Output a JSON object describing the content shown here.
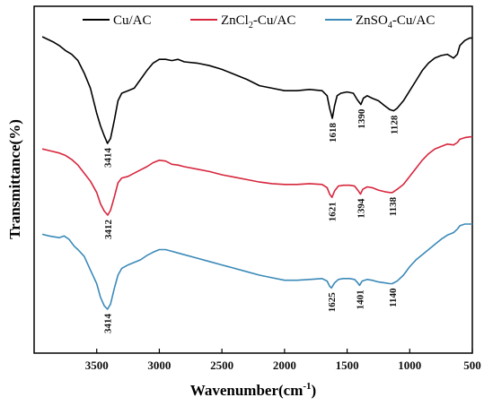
{
  "chart_data": {
    "type": "line",
    "xlabel": "Wavenumber(cm",
    "xlabel_sup": "-1",
    "xlabel_end": ")",
    "ylabel": "Transmittance(%)",
    "xlim": [
      4000,
      500
    ],
    "x_reversed": true,
    "x_ticks": [
      3500,
      3000,
      2500,
      2000,
      1500,
      1000,
      500
    ],
    "x_tick_labels": [
      "3500",
      "3000",
      "2500",
      "2000",
      "1500",
      "1000",
      "500"
    ],
    "y_ticks_labeled": false,
    "grid": false,
    "legend_position": "top",
    "colors": {
      "Cu/AC": "#000000",
      "ZnCl2-Cu/AC": "#d7263d",
      "ZnSO4-Cu/AC": "#3b8ab8"
    },
    "series": [
      {
        "name": "Cu/AC",
        "legend_parts": [
          [
            "Cu/AC",
            ""
          ]
        ],
        "color": "#000000",
        "points": [
          [
            3935,
            85
          ],
          [
            3850,
            81
          ],
          [
            3800,
            78
          ],
          [
            3750,
            74
          ],
          [
            3700,
            71
          ],
          [
            3650,
            66
          ],
          [
            3600,
            56
          ],
          [
            3550,
            44
          ],
          [
            3500,
            24
          ],
          [
            3470,
            14
          ],
          [
            3440,
            6
          ],
          [
            3414,
            0
          ],
          [
            3390,
            4
          ],
          [
            3360,
            18
          ],
          [
            3330,
            34
          ],
          [
            3300,
            40
          ],
          [
            3250,
            42
          ],
          [
            3200,
            44
          ],
          [
            3150,
            51
          ],
          [
            3100,
            58
          ],
          [
            3050,
            64
          ],
          [
            3000,
            67
          ],
          [
            2950,
            67
          ],
          [
            2900,
            66
          ],
          [
            2850,
            67
          ],
          [
            2800,
            65
          ],
          [
            2700,
            64
          ],
          [
            2600,
            62
          ],
          [
            2500,
            59
          ],
          [
            2400,
            55
          ],
          [
            2300,
            51
          ],
          [
            2200,
            46
          ],
          [
            2100,
            44
          ],
          [
            2000,
            42
          ],
          [
            1900,
            42
          ],
          [
            1800,
            43
          ],
          [
            1700,
            42
          ],
          [
            1660,
            38
          ],
          [
            1640,
            28
          ],
          [
            1618,
            20
          ],
          [
            1600,
            30
          ],
          [
            1580,
            38
          ],
          [
            1550,
            40
          ],
          [
            1500,
            41
          ],
          [
            1450,
            40
          ],
          [
            1420,
            35
          ],
          [
            1390,
            31
          ],
          [
            1370,
            36
          ],
          [
            1340,
            38
          ],
          [
            1300,
            36
          ],
          [
            1250,
            34
          ],
          [
            1200,
            30
          ],
          [
            1160,
            27
          ],
          [
            1128,
            26
          ],
          [
            1100,
            28
          ],
          [
            1050,
            34
          ],
          [
            1000,
            42
          ],
          [
            950,
            50
          ],
          [
            900,
            58
          ],
          [
            850,
            64
          ],
          [
            800,
            68
          ],
          [
            750,
            70
          ],
          [
            700,
            71
          ],
          [
            650,
            68
          ],
          [
            620,
            71
          ],
          [
            600,
            78
          ],
          [
            560,
            82
          ],
          [
            520,
            84
          ],
          [
            500,
            84
          ]
        ]
      },
      {
        "name": "ZnCl2-Cu/AC",
        "legend_parts": [
          [
            "ZnCl",
            ""
          ],
          [
            "2",
            "sub"
          ],
          [
            "-Cu/AC",
            ""
          ]
        ],
        "color": "#d7263d",
        "points": [
          [
            3935,
            82
          ],
          [
            3880,
            80
          ],
          [
            3800,
            77
          ],
          [
            3750,
            74
          ],
          [
            3700,
            69
          ],
          [
            3650,
            62
          ],
          [
            3600,
            52
          ],
          [
            3550,
            42
          ],
          [
            3500,
            28
          ],
          [
            3470,
            14
          ],
          [
            3440,
            5
          ],
          [
            3412,
            0
          ],
          [
            3390,
            6
          ],
          [
            3360,
            22
          ],
          [
            3330,
            40
          ],
          [
            3300,
            46
          ],
          [
            3250,
            48
          ],
          [
            3200,
            52
          ],
          [
            3150,
            56
          ],
          [
            3100,
            60
          ],
          [
            3050,
            65
          ],
          [
            3000,
            68
          ],
          [
            2950,
            67
          ],
          [
            2900,
            63
          ],
          [
            2850,
            62
          ],
          [
            2800,
            60
          ],
          [
            2700,
            57
          ],
          [
            2600,
            54
          ],
          [
            2500,
            50
          ],
          [
            2400,
            47
          ],
          [
            2300,
            44
          ],
          [
            2200,
            41
          ],
          [
            2100,
            39
          ],
          [
            2000,
            38
          ],
          [
            1900,
            38
          ],
          [
            1800,
            39
          ],
          [
            1700,
            38
          ],
          [
            1660,
            34
          ],
          [
            1640,
            26
          ],
          [
            1621,
            22
          ],
          [
            1600,
            30
          ],
          [
            1570,
            36
          ],
          [
            1530,
            37
          ],
          [
            1480,
            37
          ],
          [
            1440,
            36
          ],
          [
            1410,
            30
          ],
          [
            1394,
            26
          ],
          [
            1375,
            32
          ],
          [
            1340,
            35
          ],
          [
            1300,
            34
          ],
          [
            1250,
            31
          ],
          [
            1200,
            29
          ],
          [
            1160,
            28
          ],
          [
            1138,
            28
          ],
          [
            1100,
            32
          ],
          [
            1050,
            38
          ],
          [
            1000,
            48
          ],
          [
            950,
            58
          ],
          [
            900,
            68
          ],
          [
            850,
            76
          ],
          [
            800,
            82
          ],
          [
            750,
            85
          ],
          [
            700,
            88
          ],
          [
            650,
            87
          ],
          [
            620,
            90
          ],
          [
            600,
            94
          ],
          [
            560,
            96
          ],
          [
            520,
            97
          ],
          [
            500,
            97
          ]
        ]
      },
      {
        "name": "ZnSO4-Cu/AC",
        "legend_parts": [
          [
            "ZnSO",
            ""
          ],
          [
            "4",
            "sub"
          ],
          [
            "-Cu/AC",
            ""
          ]
        ],
        "color": "#3b8ab8",
        "points": [
          [
            3935,
            88
          ],
          [
            3880,
            86
          ],
          [
            3800,
            84
          ],
          [
            3760,
            86
          ],
          [
            3720,
            82
          ],
          [
            3680,
            74
          ],
          [
            3650,
            70
          ],
          [
            3600,
            62
          ],
          [
            3550,
            46
          ],
          [
            3500,
            30
          ],
          [
            3470,
            14
          ],
          [
            3440,
            4
          ],
          [
            3414,
            0
          ],
          [
            3390,
            6
          ],
          [
            3360,
            24
          ],
          [
            3330,
            40
          ],
          [
            3300,
            48
          ],
          [
            3250,
            52
          ],
          [
            3200,
            55
          ],
          [
            3150,
            58
          ],
          [
            3100,
            63
          ],
          [
            3050,
            67
          ],
          [
            3000,
            70
          ],
          [
            2950,
            70
          ],
          [
            2900,
            68
          ],
          [
            2850,
            66
          ],
          [
            2800,
            64
          ],
          [
            2700,
            60
          ],
          [
            2600,
            56
          ],
          [
            2500,
            52
          ],
          [
            2400,
            48
          ],
          [
            2300,
            44
          ],
          [
            2200,
            40
          ],
          [
            2100,
            37
          ],
          [
            2000,
            34
          ],
          [
            1900,
            34
          ],
          [
            1800,
            35
          ],
          [
            1700,
            36
          ],
          [
            1660,
            33
          ],
          [
            1640,
            27
          ],
          [
            1625,
            25
          ],
          [
            1600,
            31
          ],
          [
            1570,
            35
          ],
          [
            1530,
            36
          ],
          [
            1480,
            36
          ],
          [
            1440,
            35
          ],
          [
            1415,
            31
          ],
          [
            1401,
            28
          ],
          [
            1380,
            33
          ],
          [
            1340,
            35
          ],
          [
            1300,
            34
          ],
          [
            1250,
            32
          ],
          [
            1200,
            31
          ],
          [
            1160,
            30
          ],
          [
            1140,
            30
          ],
          [
            1100,
            33
          ],
          [
            1050,
            40
          ],
          [
            1000,
            50
          ],
          [
            950,
            58
          ],
          [
            900,
            64
          ],
          [
            850,
            70
          ],
          [
            800,
            76
          ],
          [
            750,
            82
          ],
          [
            700,
            87
          ],
          [
            650,
            90
          ],
          [
            620,
            94
          ],
          [
            600,
            98
          ],
          [
            560,
            100
          ],
          [
            520,
            100
          ],
          [
            500,
            100
          ]
        ]
      }
    ],
    "annotations": [
      {
        "series": 0,
        "wavenumber": 3414,
        "label": "3414"
      },
      {
        "series": 0,
        "wavenumber": 1618,
        "label": "1618"
      },
      {
        "series": 0,
        "wavenumber": 1390,
        "label": "1390"
      },
      {
        "series": 0,
        "wavenumber": 1128,
        "label": "1128"
      },
      {
        "series": 1,
        "wavenumber": 3412,
        "label": "3412"
      },
      {
        "series": 1,
        "wavenumber": 1621,
        "label": "1621"
      },
      {
        "series": 1,
        "wavenumber": 1394,
        "label": "1394"
      },
      {
        "series": 1,
        "wavenumber": 1138,
        "label": "1138"
      },
      {
        "series": 2,
        "wavenumber": 3414,
        "label": "3414"
      },
      {
        "series": 2,
        "wavenumber": 1625,
        "label": "1625"
      },
      {
        "series": 2,
        "wavenumber": 1401,
        "label": "1401"
      },
      {
        "series": 2,
        "wavenumber": 1140,
        "label": "1140"
      }
    ]
  }
}
